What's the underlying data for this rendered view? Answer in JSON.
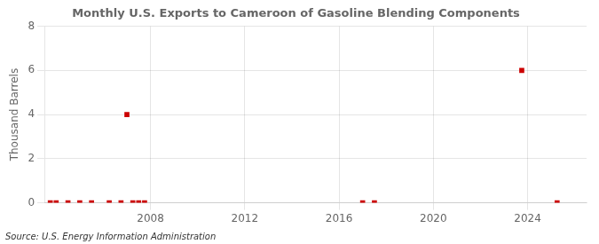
{
  "chart_data": {
    "type": "scatter",
    "title": "Monthly U.S. Exports to Cameroon of Gasoline Blending Components",
    "ylabel": "Thousand Barrels",
    "annotation": "Source: U.S. Energy Information Administration",
    "x": [
      2003.75,
      2004.0,
      2004.5,
      2005.0,
      2005.5,
      2006.25,
      2006.75,
      2007.0,
      2007.25,
      2007.5,
      2007.75,
      2017.0,
      2017.5,
      2023.75,
      2025.25
    ],
    "values": [
      0,
      0,
      0,
      0,
      0,
      0,
      0,
      4,
      0,
      0,
      0,
      0,
      0,
      6,
      0
    ],
    "color": "#cc0000",
    "marker": "square",
    "xlim": [
      2003.5,
      2026.5
    ],
    "xticks": [
      2008,
      2012,
      2016,
      2020,
      2024
    ],
    "ylim": [
      0,
      8
    ],
    "yticks": [
      0,
      2,
      4,
      6,
      8
    ],
    "grid": true
  }
}
